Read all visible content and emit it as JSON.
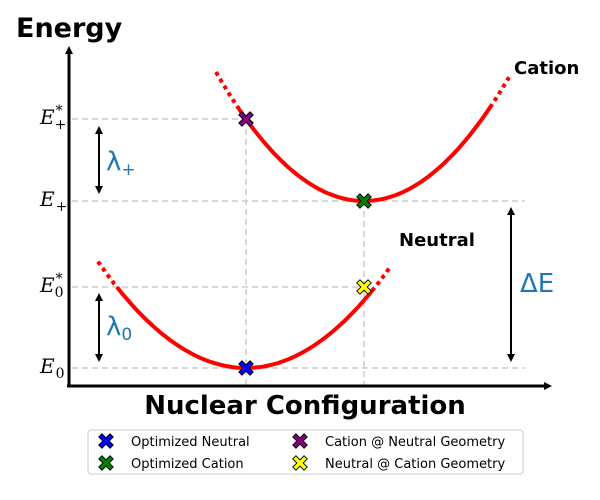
{
  "title": "Energy",
  "xlabel": "Nuclear Configuration",
  "levels": {
    "e_plus_star": {
      "base": "E",
      "sup": "*",
      "sub": "+"
    },
    "e_plus": {
      "base": "E",
      "sub": "+"
    },
    "e0_star": {
      "base": "E",
      "sup": "*",
      "sub": "0"
    },
    "e0": {
      "base": "E",
      "sub": "0"
    }
  },
  "lambda_plus": {
    "base": "λ",
    "sub": "+"
  },
  "lambda_0": {
    "base": "λ",
    "sub": "0"
  },
  "delta_e": "ΔE",
  "curve_labels": {
    "cation": "Cation",
    "neutral": "Neutral"
  },
  "legend": [
    {
      "label": "Optimized Neutral",
      "color": "#0000ff"
    },
    {
      "label": "Cation @ Neutral Geometry",
      "color": "#800080"
    },
    {
      "label": "Optimized Cation",
      "color": "#008000"
    },
    {
      "label": "Neutral @ Cation Geometry",
      "color": "#ffff00"
    }
  ],
  "colors": {
    "curve": "#ff0000",
    "annotation": "#1f77b4",
    "grid": "#cccccc"
  }
}
